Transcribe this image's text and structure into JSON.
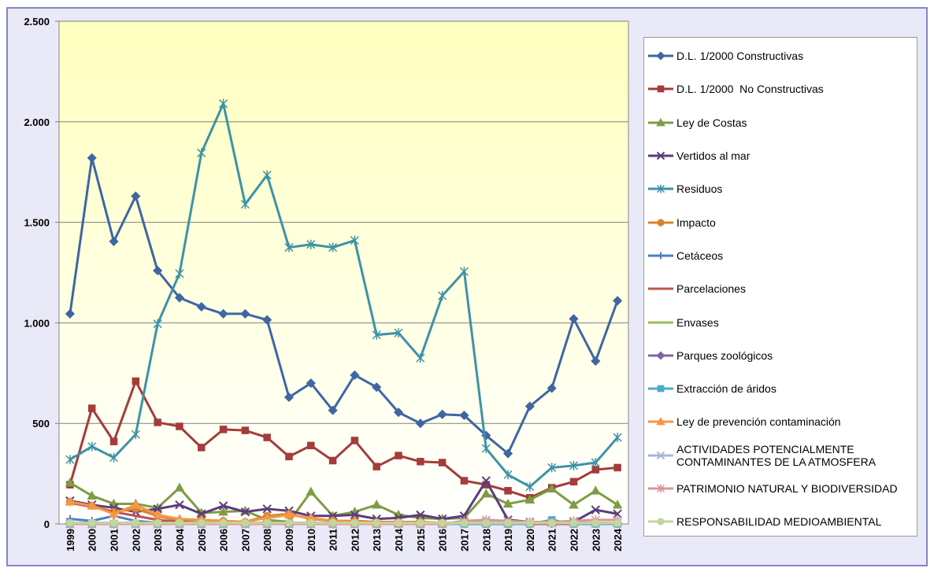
{
  "chart_data": {
    "type": "line",
    "categories": [
      "1999",
      "2000",
      "2001",
      "2002",
      "2003",
      "2004",
      "2005",
      "2006",
      "2007",
      "2008",
      "2009",
      "2010",
      "2011",
      "2012",
      "2013",
      "2014",
      "2015",
      "2016",
      "2017",
      "2018",
      "2019",
      "2020",
      "2021",
      "2022",
      "2023",
      "2024"
    ],
    "ylim": [
      0,
      2500
    ],
    "yticks": [
      0,
      500,
      {
        "value": 1000,
        "label": "1.000"
      },
      {
        "value": 1500,
        "label": "1.500"
      },
      {
        "value": 2000,
        "label": "2.000"
      },
      {
        "value": 2500,
        "label": "2.500"
      }
    ],
    "grid": true,
    "legend": "right",
    "series": [
      {
        "name": "D.L. 1/2000 Constructivas",
        "color": "#3f66a3",
        "marker": "diamond",
        "values": [
          1045,
          1820,
          1405,
          1630,
          1260,
          1125,
          1080,
          1045,
          1045,
          1015,
          630,
          700,
          565,
          740,
          680,
          555,
          500,
          545,
          540,
          440,
          350,
          585,
          675,
          1020,
          810,
          1110
        ]
      },
      {
        "name": "D.L. 1/2000  No Constructivas",
        "color": "#a33c3a",
        "marker": "square",
        "values": [
          195,
          575,
          410,
          710,
          505,
          485,
          380,
          470,
          465,
          430,
          335,
          390,
          315,
          415,
          285,
          340,
          310,
          305,
          215,
          195,
          165,
          130,
          180,
          210,
          270,
          280
        ]
      },
      {
        "name": "Ley de Costas",
        "color": "#7e9c43",
        "marker": "triangle",
        "values": [
          205,
          140,
          100,
          100,
          80,
          180,
          55,
          60,
          65,
          20,
          10,
          160,
          40,
          60,
          95,
          45,
          30,
          25,
          30,
          150,
          100,
          120,
          175,
          95,
          165,
          95
        ]
      },
      {
        "name": "Vertidos al mar",
        "color": "#5c3c7a",
        "marker": "x",
        "values": [
          115,
          95,
          80,
          60,
          75,
          95,
          50,
          90,
          60,
          75,
          65,
          40,
          40,
          45,
          25,
          30,
          45,
          25,
          40,
          215,
          20,
          10,
          5,
          10,
          70,
          50
        ]
      },
      {
        "name": "Residuos",
        "color": "#3d93a5",
        "marker": "star",
        "values": [
          320,
          385,
          330,
          445,
          995,
          1245,
          1845,
          2090,
          1590,
          1735,
          1375,
          1390,
          1375,
          1410,
          940,
          950,
          825,
          1135,
          1255,
          375,
          245,
          185,
          280,
          290,
          305,
          430
        ]
      },
      {
        "name": "Impacto",
        "color": "#d8822f",
        "marker": "circle",
        "values": [
          110,
          90,
          60,
          75,
          40,
          15,
          20,
          15,
          10,
          40,
          50,
          25,
          15,
          15,
          10,
          10,
          10,
          5,
          5,
          5,
          5,
          5,
          5,
          5,
          5,
          5
        ]
      },
      {
        "name": "Cetáceos",
        "color": "#4a7ec6",
        "marker": "plus",
        "values": [
          25,
          15,
          40,
          15,
          5,
          0,
          0,
          0,
          0,
          0,
          0,
          0,
          0,
          0,
          0,
          0,
          0,
          0,
          0,
          0,
          0,
          0,
          0,
          0,
          0,
          0
        ]
      },
      {
        "name": "Parcelaciones",
        "color": "#c0504d",
        "marker": "none",
        "values": [
          105,
          85,
          60,
          40,
          20,
          10,
          5,
          5,
          5,
          5,
          5,
          0,
          0,
          0,
          0,
          0,
          0,
          0,
          0,
          0,
          0,
          0,
          0,
          0,
          0,
          0
        ]
      },
      {
        "name": "Envases",
        "color": "#9bbb59",
        "marker": "none",
        "values": [
          5,
          5,
          5,
          5,
          5,
          5,
          5,
          5,
          5,
          5,
          5,
          5,
          5,
          5,
          5,
          5,
          5,
          5,
          5,
          5,
          5,
          5,
          5,
          5,
          5,
          5
        ]
      },
      {
        "name": "Parques zoológicos",
        "color": "#8064a2",
        "marker": "diamond",
        "values": [
          5,
          5,
          5,
          5,
          5,
          5,
          5,
          5,
          5,
          5,
          5,
          5,
          5,
          5,
          5,
          5,
          5,
          5,
          5,
          5,
          5,
          5,
          5,
          5,
          5,
          5
        ]
      },
      {
        "name": "Extracción de áridos",
        "color": "#4bacc6",
        "marker": "square",
        "values": [
          0,
          0,
          0,
          0,
          0,
          0,
          0,
          0,
          0,
          0,
          0,
          0,
          0,
          0,
          0,
          0,
          0,
          0,
          0,
          0,
          0,
          0,
          20,
          0,
          0,
          0
        ]
      },
      {
        "name": "Ley de prevención contaminación",
        "color": "#f79646",
        "marker": "triangle",
        "values": [
          110,
          90,
          50,
          95,
          45,
          25,
          20,
          15,
          10,
          30,
          45,
          30,
          15,
          10,
          5,
          5,
          5,
          5,
          5,
          5,
          5,
          5,
          5,
          5,
          5,
          5
        ]
      },
      {
        "name": "ACTIVIDADES POTENCIALMENTE CONTAMINANTES DE LA ATMOSFERA",
        "color": "#a5b6db",
        "marker": "x",
        "values": [
          0,
          0,
          0,
          0,
          0,
          0,
          0,
          0,
          0,
          0,
          0,
          0,
          0,
          0,
          0,
          0,
          0,
          0,
          5,
          10,
          10,
          5,
          5,
          5,
          5,
          5
        ]
      },
      {
        "name": "PATRIMONIO NATURAL Y BIODIVERSIDAD",
        "color": "#d99694",
        "marker": "star",
        "values": [
          0,
          0,
          0,
          0,
          0,
          0,
          0,
          0,
          0,
          0,
          0,
          0,
          0,
          0,
          0,
          0,
          0,
          0,
          15,
          20,
          15,
          10,
          10,
          15,
          20,
          20
        ]
      },
      {
        "name": "RESPONSABILIDAD MEDIOAMBIENTAL",
        "color": "#c3d69b",
        "marker": "circle",
        "values": [
          5,
          5,
          5,
          5,
          5,
          5,
          5,
          5,
          5,
          5,
          5,
          5,
          5,
          5,
          5,
          5,
          5,
          5,
          5,
          5,
          5,
          5,
          5,
          5,
          5,
          5
        ]
      }
    ]
  }
}
